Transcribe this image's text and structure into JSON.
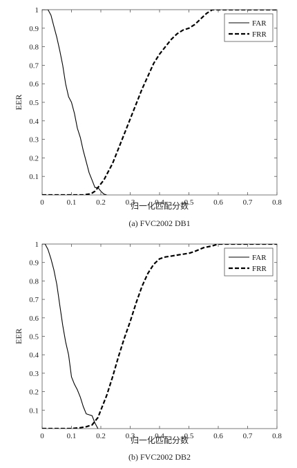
{
  "chart_data": [
    {
      "type": "line",
      "caption": "(a) FVC2002 DB1",
      "xlabel": "归一化匹配分数",
      "ylabel": "EER",
      "xlim": [
        0,
        0.8
      ],
      "ylim": [
        0,
        1
      ],
      "xticks": [
        "0",
        "0.1",
        "0.2",
        "0.3",
        "0.4",
        "0.5",
        "0.6",
        "0.7",
        "0.8"
      ],
      "yticks": [
        "0.1",
        "0.2",
        "0.3",
        "0.4",
        "0.5",
        "0.6",
        "0.7",
        "0.8",
        "0.9",
        "1"
      ],
      "grid": false,
      "legend": "top-right",
      "series": [
        {
          "name": "FAR",
          "style": "solid",
          "x": [
            0.0,
            0.01,
            0.02,
            0.03,
            0.04,
            0.05,
            0.06,
            0.07,
            0.08,
            0.09,
            0.1,
            0.11,
            0.12,
            0.13,
            0.14,
            0.15,
            0.16,
            0.17,
            0.18,
            0.19,
            0.2,
            0.21,
            0.22
          ],
          "y": [
            1.0,
            1.0,
            1.0,
            0.97,
            0.91,
            0.85,
            0.78,
            0.7,
            0.6,
            0.53,
            0.5,
            0.44,
            0.36,
            0.31,
            0.24,
            0.18,
            0.12,
            0.08,
            0.04,
            0.04,
            0.02,
            0.005,
            0.0
          ]
        },
        {
          "name": "FRR",
          "style": "dashed",
          "x": [
            0.0,
            0.05,
            0.1,
            0.14,
            0.16,
            0.17,
            0.18,
            0.19,
            0.2,
            0.21,
            0.22,
            0.24,
            0.26,
            0.28,
            0.3,
            0.32,
            0.34,
            0.36,
            0.38,
            0.4,
            0.42,
            0.44,
            0.46,
            0.48,
            0.5,
            0.52,
            0.54,
            0.56,
            0.58,
            0.6,
            0.65,
            0.7,
            0.8
          ],
          "y": [
            0.0,
            0.0,
            0.0,
            0.0,
            0.005,
            0.01,
            0.02,
            0.04,
            0.06,
            0.08,
            0.11,
            0.17,
            0.25,
            0.33,
            0.41,
            0.49,
            0.57,
            0.64,
            0.71,
            0.76,
            0.8,
            0.84,
            0.87,
            0.89,
            0.9,
            0.92,
            0.95,
            0.98,
            1.0,
            1.0,
            1.0,
            1.0,
            1.0
          ]
        }
      ]
    },
    {
      "type": "line",
      "caption": "(b) FVC2002 DB2",
      "xlabel": "归一化匹配分数",
      "ylabel": "EER",
      "xlim": [
        0,
        0.8
      ],
      "ylim": [
        0,
        1
      ],
      "xticks": [
        "0",
        "0.1",
        "0.2",
        "0.3",
        "0.4",
        "0.5",
        "0.6",
        "0.7",
        "0.8"
      ],
      "yticks": [
        "0.1",
        "0.2",
        "0.3",
        "0.4",
        "0.5",
        "0.6",
        "0.7",
        "0.8",
        "0.9",
        "1"
      ],
      "grid": false,
      "legend": "top-right",
      "series": [
        {
          "name": "FAR",
          "style": "solid",
          "x": [
            0.0,
            0.01,
            0.02,
            0.03,
            0.04,
            0.05,
            0.06,
            0.07,
            0.08,
            0.09,
            0.1,
            0.11,
            0.12,
            0.13,
            0.14,
            0.15,
            0.16,
            0.17,
            0.18,
            0.19
          ],
          "y": [
            1.0,
            1.0,
            0.97,
            0.92,
            0.86,
            0.78,
            0.67,
            0.56,
            0.47,
            0.4,
            0.28,
            0.24,
            0.21,
            0.17,
            0.12,
            0.08,
            0.075,
            0.07,
            0.03,
            0.0
          ]
        },
        {
          "name": "FRR",
          "style": "dashed",
          "x": [
            0.0,
            0.05,
            0.1,
            0.13,
            0.15,
            0.17,
            0.18,
            0.19,
            0.2,
            0.22,
            0.24,
            0.26,
            0.28,
            0.3,
            0.32,
            0.34,
            0.36,
            0.38,
            0.4,
            0.42,
            0.44,
            0.46,
            0.48,
            0.5,
            0.52,
            0.55,
            0.58,
            0.6,
            0.65,
            0.7,
            0.8
          ],
          "y": [
            0.0,
            0.0,
            0.0,
            0.005,
            0.01,
            0.02,
            0.04,
            0.06,
            0.1,
            0.18,
            0.28,
            0.39,
            0.49,
            0.58,
            0.68,
            0.77,
            0.84,
            0.89,
            0.92,
            0.93,
            0.935,
            0.94,
            0.945,
            0.95,
            0.96,
            0.98,
            0.99,
            1.0,
            1.0,
            1.0,
            1.0
          ]
        }
      ]
    }
  ]
}
